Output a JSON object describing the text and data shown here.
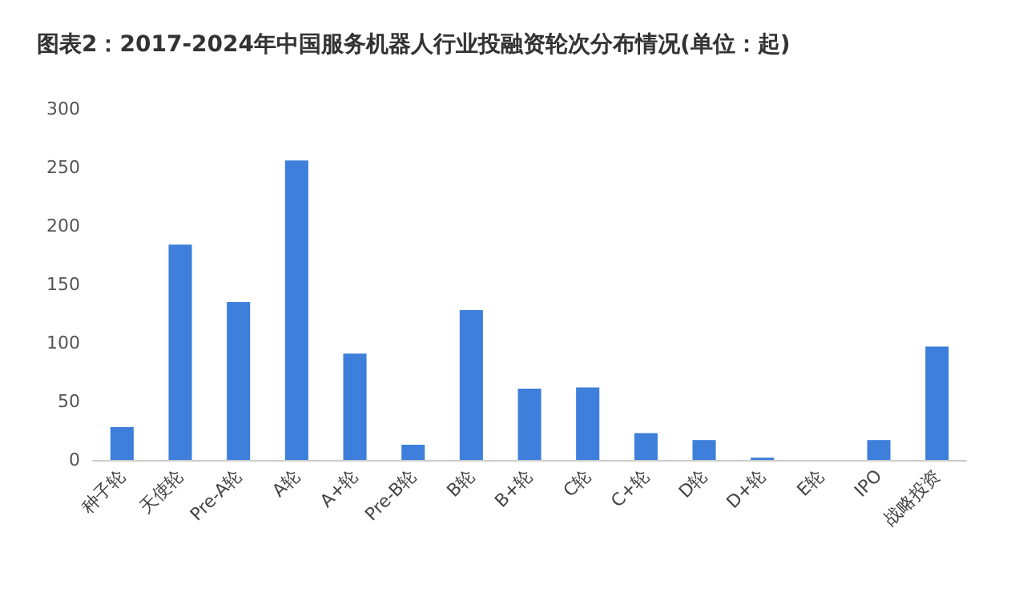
{
  "chart_data": {
    "type": "bar",
    "title": "图表2：2017-2024年中国服务机器人行业投融资轮次分布情况(单位：起)",
    "categories": [
      "种子轮",
      "天使轮",
      "Pre-A轮",
      "A轮",
      "A+轮",
      "Pre-B轮",
      "B轮",
      "B+轮",
      "C轮",
      "C+轮",
      "D轮",
      "D+轮",
      "E轮",
      "IPO",
      "战略投资"
    ],
    "values": [
      28,
      184,
      135,
      256,
      91,
      13,
      128,
      61,
      62,
      23,
      17,
      2,
      0,
      17,
      97
    ],
    "color": "#3d7fdb",
    "ylim": [
      0,
      300
    ],
    "yticks": [
      0,
      50,
      100,
      150,
      200,
      250,
      300
    ],
    "grid": false
  }
}
